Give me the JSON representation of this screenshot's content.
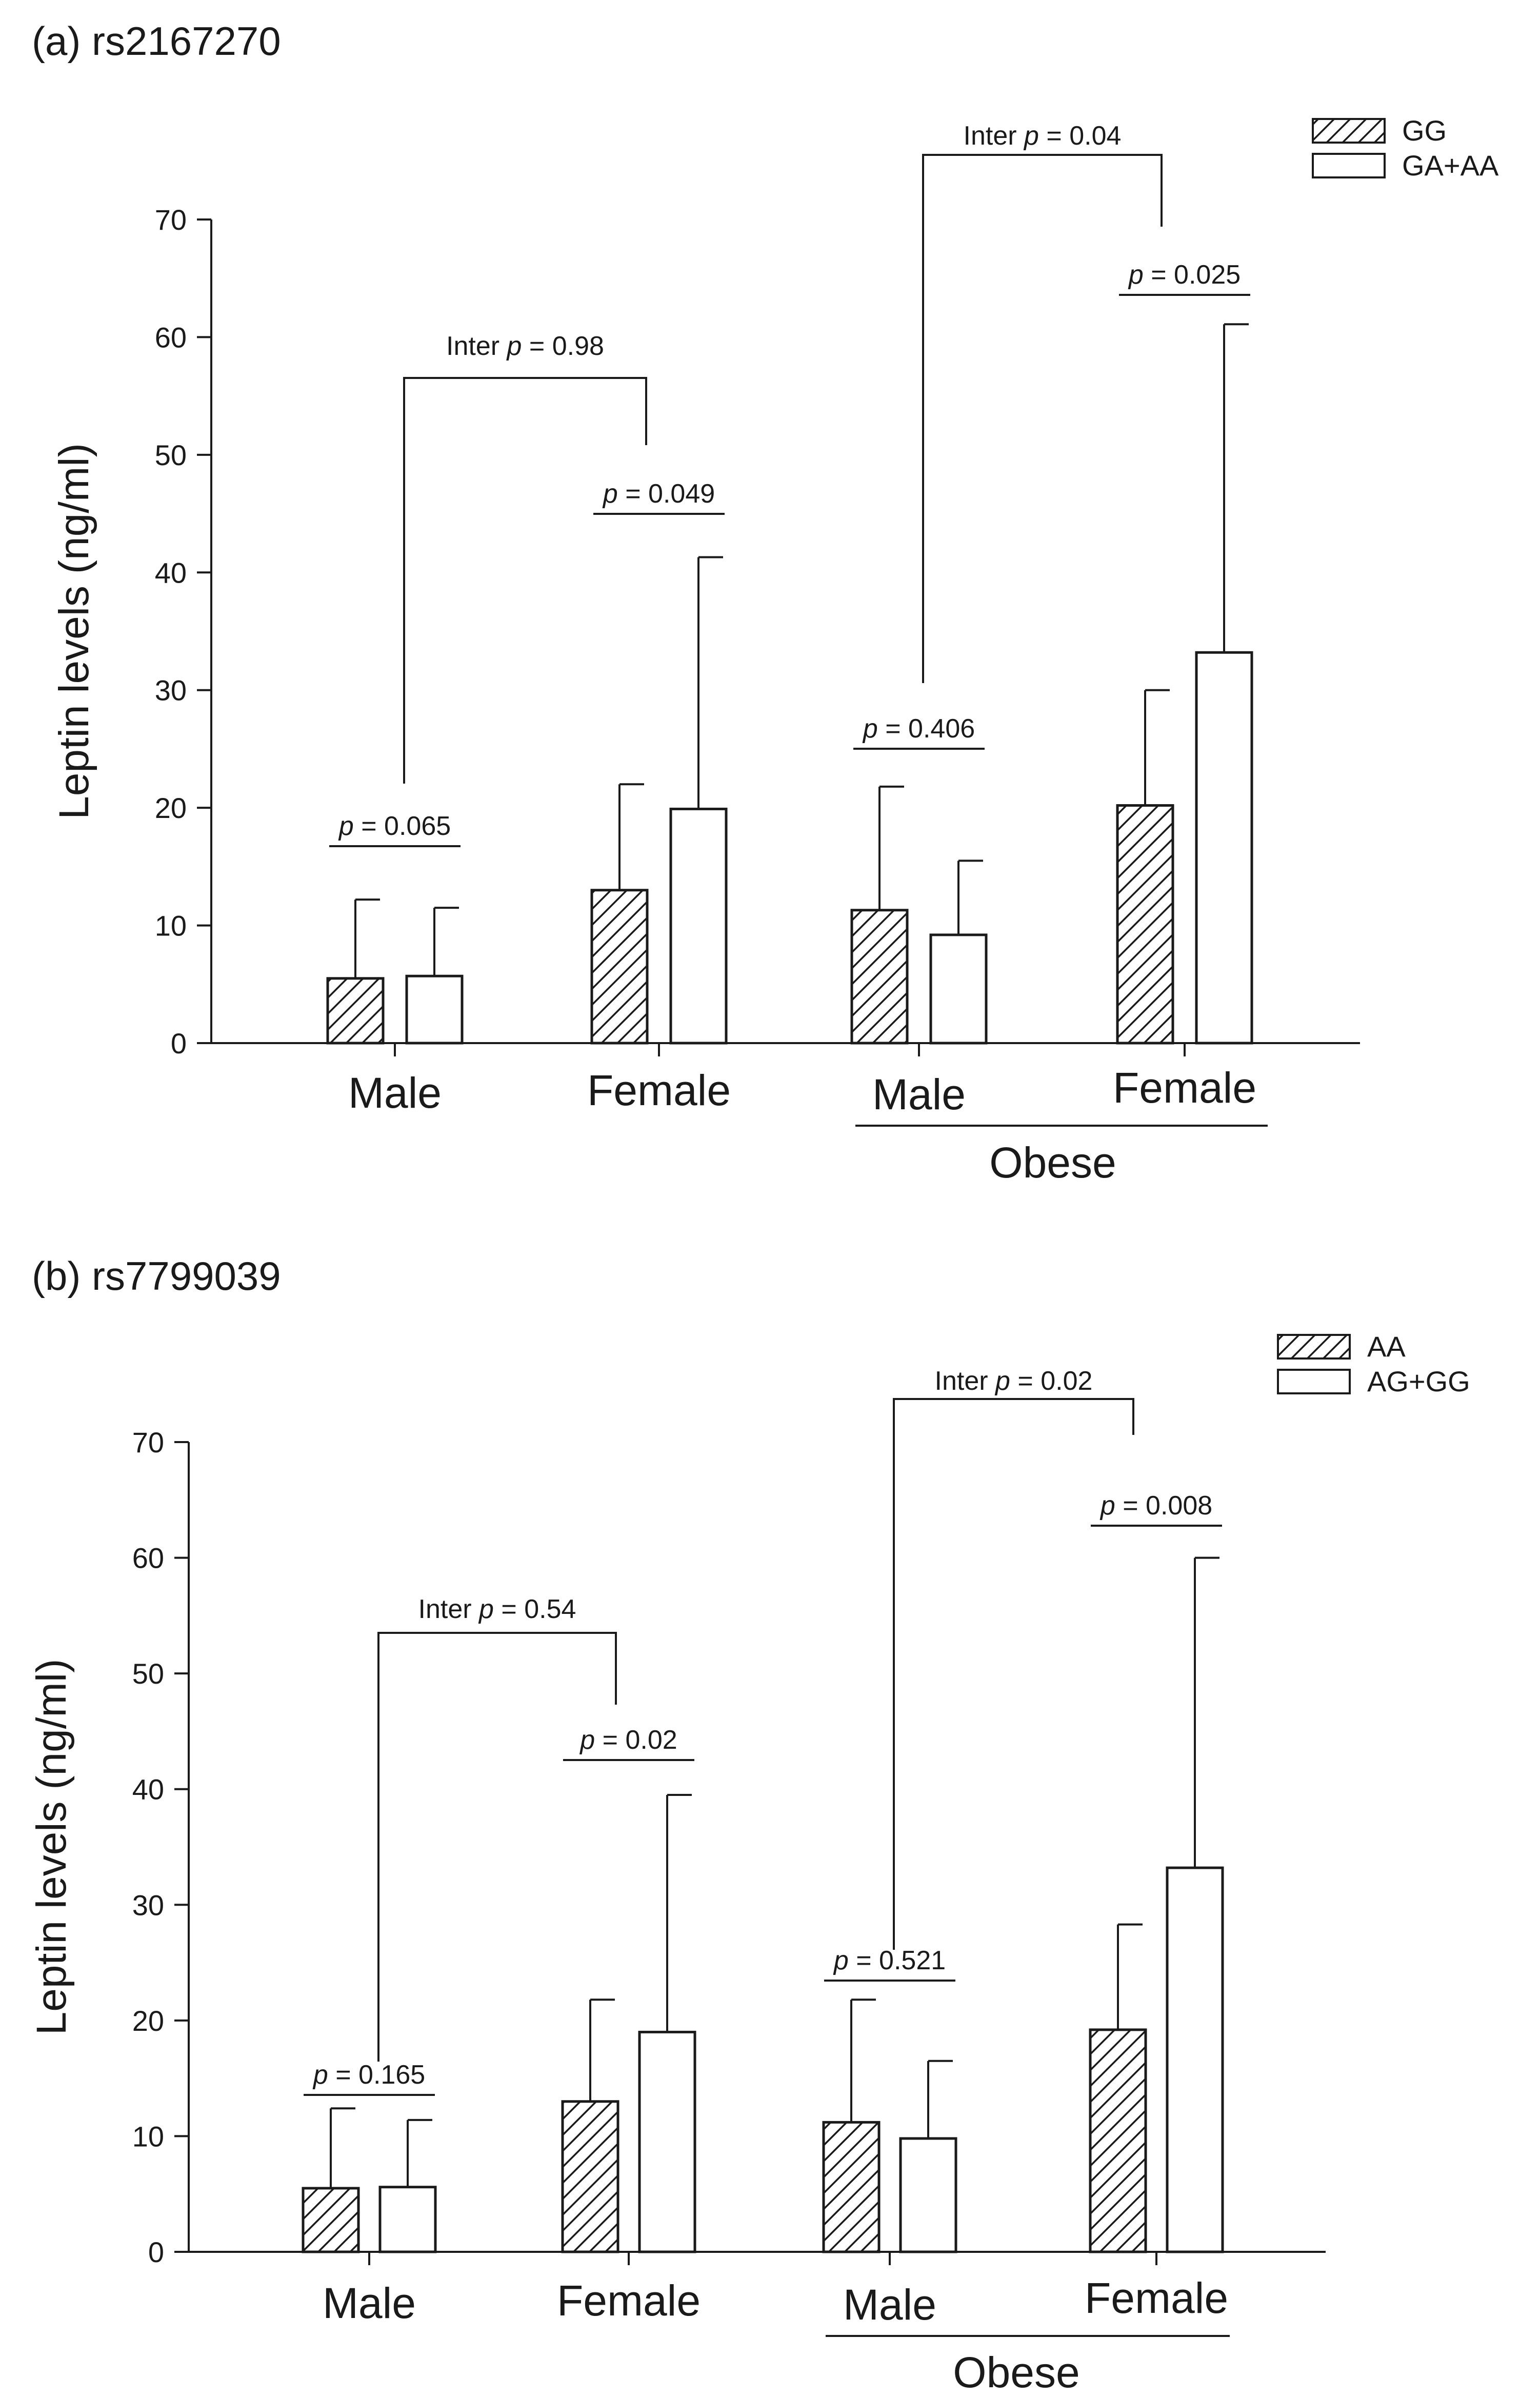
{
  "chart_data": [
    {
      "type": "bar",
      "title": "(a) rs2167270",
      "ylabel": "Leptin levels (ng/ml)",
      "xlabel": "",
      "ylim": [
        0,
        70
      ],
      "yticks": [
        0,
        10,
        20,
        30,
        40,
        50,
        60,
        70
      ],
      "categories": [
        "Male",
        "Female",
        "Male",
        "Female"
      ],
      "group_label": "Obese",
      "series": [
        {
          "name": "GG",
          "pattern": "hatched",
          "values": [
            5.5,
            13.0,
            11.3,
            20.2
          ],
          "errors": [
            6.7,
            9.0,
            10.5,
            9.8
          ]
        },
        {
          "name": "GA+AA",
          "pattern": "open",
          "values": [
            5.7,
            19.9,
            9.2,
            33.2
          ],
          "errors": [
            5.8,
            21.4,
            6.3,
            27.9
          ]
        }
      ],
      "pair_pvalues": [
        "p = 0.065",
        "p = 0.049",
        "p = 0.406",
        "p = 0.025"
      ],
      "inter_pvalues": [
        "Inter p = 0.98",
        "Inter p = 0.04"
      ]
    },
    {
      "type": "bar",
      "title": "(b) rs7799039",
      "ylabel": "Leptin levels (ng/ml)",
      "xlabel": "",
      "ylim": [
        0,
        70
      ],
      "yticks": [
        0,
        10,
        20,
        30,
        40,
        50,
        60,
        70
      ],
      "categories": [
        "Male",
        "Female",
        "Male",
        "Female"
      ],
      "group_label": "Obese",
      "series": [
        {
          "name": "AA",
          "pattern": "hatched",
          "values": [
            5.5,
            13.0,
            11.2,
            19.2
          ],
          "errors": [
            6.9,
            8.8,
            10.6,
            9.1
          ]
        },
        {
          "name": "AG+GG",
          "pattern": "open",
          "values": [
            5.6,
            19.0,
            9.8,
            33.2
          ],
          "errors": [
            5.8,
            20.5,
            6.7,
            26.8
          ]
        }
      ],
      "pair_pvalues": [
        "p = 0.165",
        "p = 0.02",
        "p = 0.521",
        "p = 0.008"
      ],
      "inter_pvalues": [
        "Inter p = 0.54",
        "Inter p = 0.02"
      ]
    }
  ]
}
